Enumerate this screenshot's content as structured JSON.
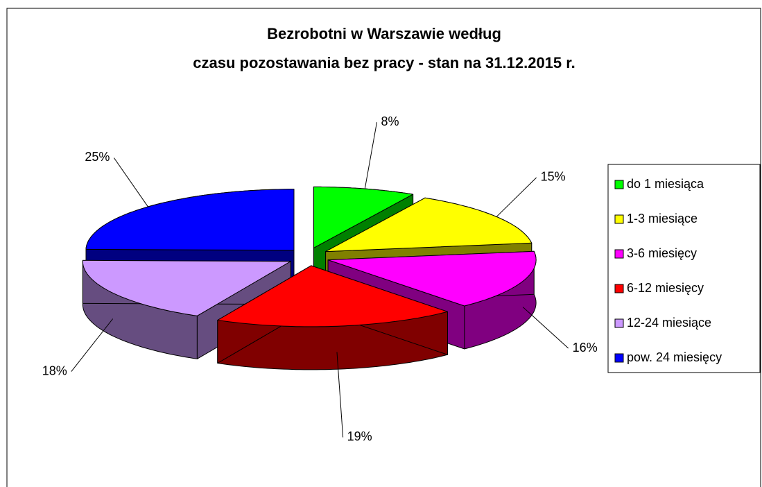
{
  "chart_data": {
    "type": "pie3d",
    "title": [
      "Bezrobotni w Warszawie według",
      "czasu pozostawania bez pracy - stan na 31.12.2015 r."
    ],
    "categories": [
      "do 1 miesiąca",
      "1-3 miesiące",
      "3-6 miesięcy",
      "6-12 miesięcy",
      "12-24 miesiące",
      "pow. 24 miesięcy"
    ],
    "values": [
      8,
      15,
      16,
      19,
      18,
      25
    ],
    "value_labels": [
      "8%",
      "15%",
      "16%",
      "19%",
      "18%",
      "25%"
    ],
    "colors": [
      "#00ff00",
      "#ffff00",
      "#ff00ff",
      "#ff0000",
      "#cc99ff",
      "#0000ff"
    ],
    "legend": "right"
  }
}
